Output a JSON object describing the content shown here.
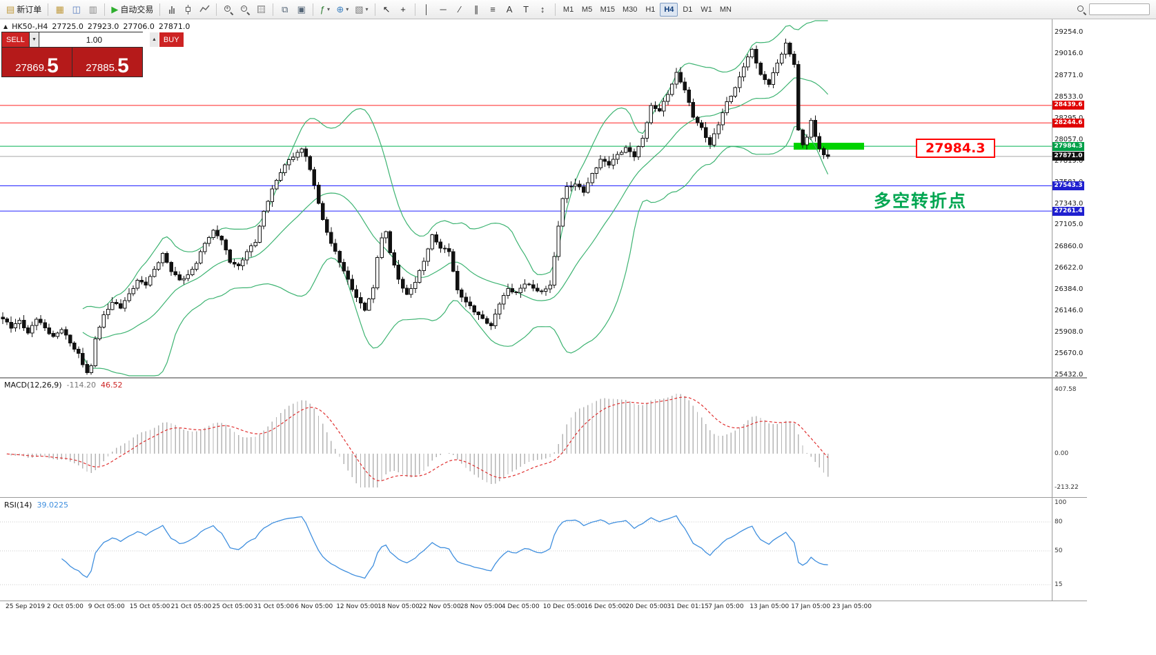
{
  "toolbar": {
    "groups": [
      {
        "items": [
          {
            "name": "new-order-button",
            "kind": "glyph",
            "glyph": "▤",
            "color": "#c09a3e",
            "label": "新订单"
          }
        ]
      },
      {
        "items": [
          {
            "name": "market-watch-icon",
            "kind": "glyph",
            "glyph": "▦",
            "color": "#c09a3e"
          },
          {
            "name": "data-window-icon",
            "kind": "glyph",
            "glyph": "◫",
            "color": "#5a7fc0"
          },
          {
            "name": "navigator-icon",
            "kind": "glyph",
            "glyph": "▥",
            "color": "#888888"
          }
        ]
      },
      {
        "items": [
          {
            "name": "auto-trading-button",
            "kind": "glyph",
            "glyph": "▶",
            "color": "#2eae2e",
            "label": "自动交易"
          }
        ]
      },
      {
        "items": [
          {
            "name": "bar-chart-icon",
            "kind": "bars"
          },
          {
            "name": "candlestick-chart-icon",
            "kind": "candle"
          },
          {
            "name": "line-chart-icon",
            "kind": "line"
          }
        ]
      },
      {
        "items": [
          {
            "name": "zoom-in-icon",
            "kind": "magp"
          },
          {
            "name": "zoom-out-icon",
            "kind": "magm"
          },
          {
            "name": "grid-icon",
            "kind": "grid"
          }
        ]
      },
      {
        "items": [
          {
            "name": "tile-windows-icon",
            "kind": "glyph",
            "glyph": "⧉",
            "color": "#556677"
          },
          {
            "name": "cascade-windows-icon",
            "kind": "glyph",
            "glyph": "▣",
            "color": "#556677"
          }
        ]
      },
      {
        "items": [
          {
            "name": "indicators-icon",
            "kind": "glyph",
            "glyph": "ƒ",
            "color": "#2e7d32",
            "dropdown": true
          },
          {
            "name": "objects-icon",
            "kind": "glyph",
            "glyph": "⊕",
            "color": "#3a7fc0",
            "dropdown": true
          },
          {
            "name": "templates-icon",
            "kind": "glyph",
            "glyph": "▧",
            "color": "#777777",
            "dropdown": true
          }
        ]
      },
      {
        "items": [
          {
            "name": "cursor-icon",
            "kind": "glyph",
            "glyph": "↖",
            "color": "#222222"
          },
          {
            "name": "crosshair-icon",
            "kind": "glyph",
            "glyph": "+",
            "color": "#222222"
          }
        ]
      },
      {
        "items": [
          {
            "name": "vertical-line-icon",
            "kind": "glyph",
            "glyph": "│",
            "color": "#333333"
          },
          {
            "name": "horizontal-line-icon",
            "kind": "glyph",
            "glyph": "─",
            "color": "#333333"
          },
          {
            "name": "trendline-icon",
            "kind": "glyph",
            "glyph": "∕",
            "color": "#333333"
          },
          {
            "name": "channel-icon",
            "kind": "glyph",
            "glyph": "∥",
            "color": "#333333"
          },
          {
            "name": "fibonacci-icon",
            "kind": "glyph",
            "glyph": "≡",
            "color": "#333333"
          },
          {
            "name": "text-icon",
            "kind": "glyph",
            "glyph": "A",
            "color": "#333333"
          },
          {
            "name": "label-icon",
            "kind": "glyph",
            "glyph": "T",
            "color": "#333333"
          },
          {
            "name": "arrows-icon",
            "kind": "glyph",
            "glyph": "↕",
            "color": "#333333"
          }
        ]
      }
    ],
    "timeframes": [
      "M1",
      "M5",
      "M15",
      "M30",
      "H1",
      "H4",
      "D1",
      "W1",
      "MN"
    ],
    "active_timeframe": "H4"
  },
  "chart_header": {
    "collapse_icon": "▲",
    "symbol": "HK50-,H4",
    "open": "27725.0",
    "high": "27923.0",
    "low": "27706.0",
    "close": "27871.0"
  },
  "trade_panel": {
    "sell_label": "SELL",
    "buy_label": "BUY",
    "volume": "1.00",
    "spin_down": "▼",
    "spin_up": "▲",
    "sell_price_small": "27869.",
    "sell_price_big": "5",
    "buy_price_small": "27885.",
    "buy_price_big": "5"
  },
  "chart_data": {
    "type": "candlestick",
    "symbol": "HK50-",
    "timeframe": "H4",
    "candle_count": 197,
    "style": {
      "up_fill": "#ffffff",
      "down_fill": "#111111",
      "outline": "#111111"
    },
    "price_axis": {
      "max": 29254.0,
      "min": 25432.0,
      "ticks": [
        "29254.0",
        "29016.0",
        "28771.0",
        "28533.0",
        "28295.0",
        "28057.0",
        "27819.0",
        "27581.0",
        "27343.0",
        "27105.0",
        "26860.0",
        "26622.0",
        "26384.0",
        "26146.0",
        "25908.0",
        "25670.0",
        "25432.0"
      ]
    },
    "time_axis": [
      "25 Sep 2019",
      "2 Oct 05:00",
      "9 Oct 05:00",
      "15 Oct 05:00",
      "21 Oct 05:00",
      "25 Oct 05:00",
      "31 Oct 05:00",
      "6 Nov 05:00",
      "12 Nov 05:00",
      "18 Nov 05:00",
      "22 Nov 05:00",
      "28 Nov 05:00",
      "4 Dec 05:00",
      "10 Dec 05:00",
      "16 Dec 05:00",
      "20 Dec 05:00",
      "31 Dec 01:15",
      "7 Jan 05:00",
      "13 Jan 05:00",
      "17 Jan 05:00",
      "23 Jan 05:00"
    ],
    "price_path": [
      [
        0,
        26060
      ],
      [
        2,
        25960
      ],
      [
        4,
        26030
      ],
      [
        6,
        25900
      ],
      [
        8,
        26070
      ],
      [
        10,
        25960
      ],
      [
        12,
        25850
      ],
      [
        14,
        25940
      ],
      [
        16,
        25790
      ],
      [
        18,
        25670
      ],
      [
        19,
        25560
      ],
      [
        20,
        25470
      ],
      [
        21,
        25530
      ],
      [
        22,
        25840
      ],
      [
        24,
        26090
      ],
      [
        26,
        26240
      ],
      [
        28,
        26190
      ],
      [
        30,
        26340
      ],
      [
        32,
        26490
      ],
      [
        34,
        26440
      ],
      [
        36,
        26600
      ],
      [
        38,
        26780
      ],
      [
        40,
        26600
      ],
      [
        42,
        26500
      ],
      [
        44,
        26540
      ],
      [
        46,
        26680
      ],
      [
        48,
        26900
      ],
      [
        50,
        27040
      ],
      [
        52,
        26950
      ],
      [
        54,
        26700
      ],
      [
        56,
        26640
      ],
      [
        58,
        26800
      ],
      [
        60,
        26920
      ],
      [
        62,
        27260
      ],
      [
        64,
        27510
      ],
      [
        66,
        27700
      ],
      [
        68,
        27830
      ],
      [
        70,
        27900
      ],
      [
        71,
        27955
      ],
      [
        72,
        27880
      ],
      [
        74,
        27560
      ],
      [
        76,
        27160
      ],
      [
        78,
        26900
      ],
      [
        80,
        26690
      ],
      [
        82,
        26490
      ],
      [
        84,
        26300
      ],
      [
        86,
        26170
      ],
      [
        88,
        26400
      ],
      [
        89,
        26750
      ],
      [
        90,
        26950
      ],
      [
        91,
        27020
      ],
      [
        92,
        26800
      ],
      [
        94,
        26500
      ],
      [
        96,
        26330
      ],
      [
        98,
        26480
      ],
      [
        100,
        26700
      ],
      [
        102,
        26980
      ],
      [
        104,
        26850
      ],
      [
        106,
        26820
      ],
      [
        107,
        26600
      ],
      [
        108,
        26380
      ],
      [
        110,
        26250
      ],
      [
        112,
        26140
      ],
      [
        114,
        26050
      ],
      [
        116,
        25980
      ],
      [
        118,
        26240
      ],
      [
        120,
        26400
      ],
      [
        122,
        26340
      ],
      [
        124,
        26450
      ],
      [
        126,
        26400
      ],
      [
        128,
        26360
      ],
      [
        130,
        26450
      ],
      [
        131,
        26750
      ],
      [
        132,
        27100
      ],
      [
        133,
        27400
      ],
      [
        134,
        27520
      ],
      [
        136,
        27560
      ],
      [
        138,
        27480
      ],
      [
        140,
        27680
      ],
      [
        142,
        27840
      ],
      [
        144,
        27780
      ],
      [
        146,
        27880
      ],
      [
        148,
        27960
      ],
      [
        150,
        27880
      ],
      [
        152,
        28080
      ],
      [
        153,
        28260
      ],
      [
        154,
        28430
      ],
      [
        156,
        28380
      ],
      [
        158,
        28560
      ],
      [
        160,
        28800
      ],
      [
        162,
        28620
      ],
      [
        164,
        28320
      ],
      [
        166,
        28180
      ],
      [
        168,
        27990
      ],
      [
        170,
        28230
      ],
      [
        172,
        28480
      ],
      [
        174,
        28640
      ],
      [
        176,
        28880
      ],
      [
        178,
        29060
      ],
      [
        180,
        28770
      ],
      [
        182,
        28680
      ],
      [
        184,
        28920
      ],
      [
        186,
        29130
      ],
      [
        187,
        29020
      ],
      [
        188,
        28900
      ],
      [
        189,
        28150
      ],
      [
        190,
        28000
      ],
      [
        191,
        28080
      ],
      [
        192,
        28260
      ],
      [
        193,
        28100
      ],
      [
        194,
        27960
      ],
      [
        195,
        27890
      ],
      [
        196,
        27871
      ]
    ],
    "overlays": {
      "bollinger": {
        "period": 20,
        "deviation": 2,
        "color": "#3CB371"
      }
    },
    "hlines": [
      {
        "value": 28439.6,
        "color": "#ff2020",
        "tag_bg": "#e00000"
      },
      {
        "value": 28244.6,
        "color": "#ff2020",
        "tag_bg": "#e00000"
      },
      {
        "value": 27984.3,
        "color": "#00b050",
        "tag_bg": "#00a048"
      },
      {
        "value": 27543.3,
        "color": "#2020ff",
        "tag_bg": "#2020d0"
      },
      {
        "value": 27261.4,
        "color": "#2020ff",
        "tag_bg": "#2020d0"
      }
    ],
    "current_price": {
      "value": 27871.0,
      "line_color": "#a8a8a8",
      "tag_bg": "#111111"
    },
    "annotations": {
      "zone": {
        "price": 27984.3,
        "color": "#00d300"
      },
      "callout": {
        "text": "27984.3",
        "color": "#ff0000"
      },
      "note": {
        "text": "多空转折点",
        "color": "#00a651"
      }
    },
    "indicators": [
      {
        "name": "MACD",
        "label": "MACD(12,26,9)",
        "values": [
          "-114.20",
          "46.52"
        ],
        "axis": [
          "407.58",
          "0.00",
          "-213.22"
        ],
        "fast": 12,
        "slow": 26,
        "signal": 9,
        "histogram_color": "#b4b4b4",
        "signal_color": "#e03030"
      },
      {
        "name": "RSI",
        "label": "RSI(14)",
        "value": "39.0225",
        "period": 14,
        "levels": [
          "100",
          "80",
          "50",
          "15"
        ],
        "line_color": "#3e8ede"
      }
    ]
  }
}
